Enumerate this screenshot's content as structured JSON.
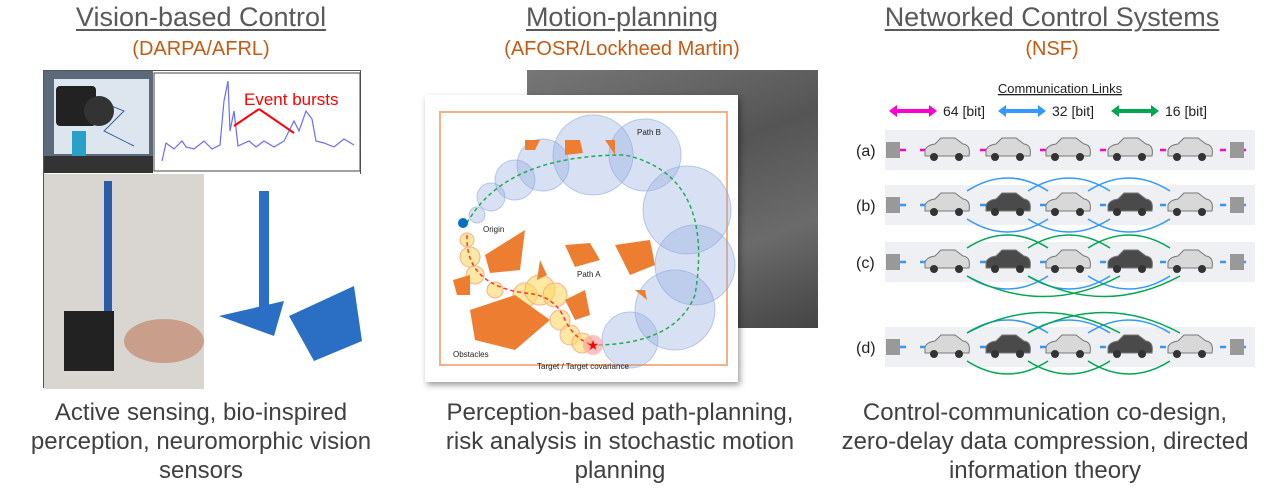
{
  "panels": [
    {
      "title": "Vision-based Control",
      "sponsor": "(DARPA/AFRL)",
      "figure_annotation": "Event bursts",
      "caption_lines": [
        "Active sensing, bio-inspired",
        "perception, neuromorphic vision",
        "sensors"
      ]
    },
    {
      "title": "Motion-planning",
      "sponsor": "(AFOSR/Lockheed Martin)",
      "figure_labels": {
        "path_b": "Path B",
        "origin": "Origin",
        "path_a": "Path A",
        "obstacles": "Obstacles",
        "target": "Target / Target covariance"
      },
      "caption_lines": [
        "Perception-based path-planning,",
        "risk analysis in stochastic motion",
        "planning"
      ]
    },
    {
      "title": "Networked Control Systems",
      "sponsor": "(NSF)",
      "legend_title": "Communication Links",
      "legend": [
        {
          "label": "64 [bit]",
          "color": "#ff00cc"
        },
        {
          "label": "32 [bit]",
          "color": "#3399ff"
        },
        {
          "label": "16 [bit]",
          "color": "#00a651"
        }
      ],
      "rows": [
        "(a)",
        "(b)",
        "(c)",
        "(d)"
      ],
      "caption_lines": [
        "Control-communication co-design,",
        "zero-delay data compression, directed",
        "information theory"
      ]
    }
  ],
  "colors": {
    "title": "#595959",
    "sponsor": "#c55a11",
    "obstacle": "#ed7d31",
    "annotation": "#ff0000"
  }
}
